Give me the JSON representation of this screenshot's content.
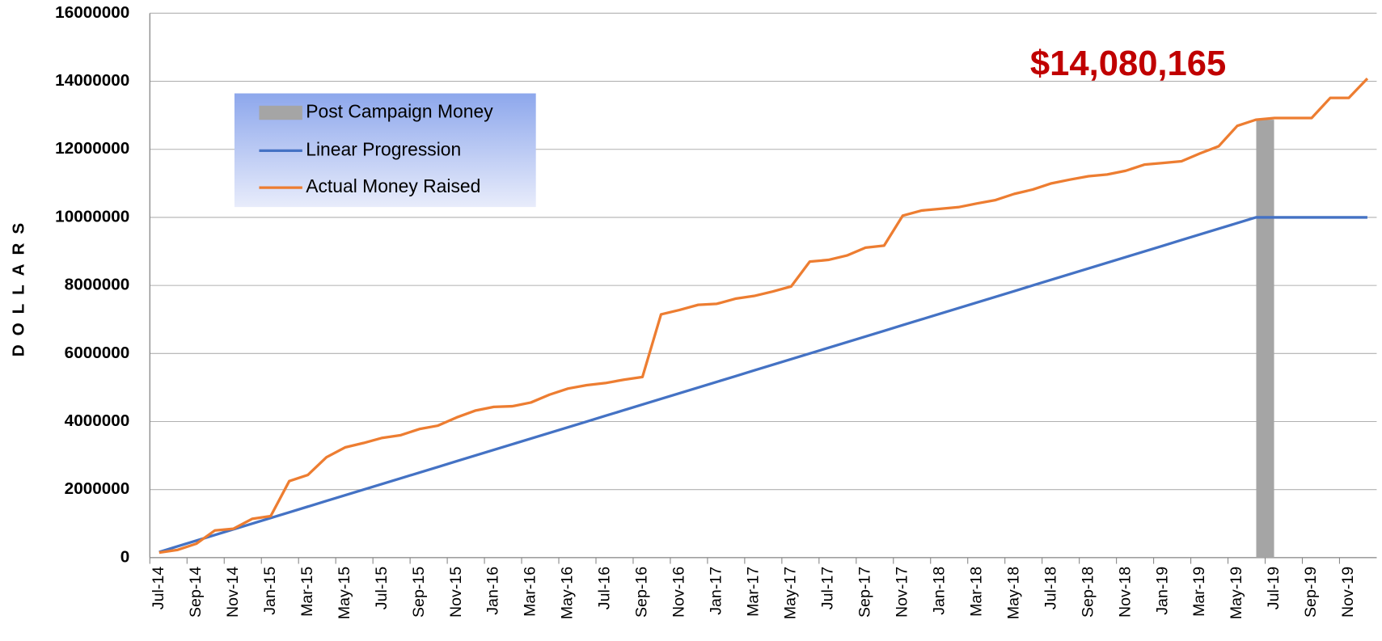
{
  "chart_data": {
    "type": "line",
    "annotation": "$14,080,165",
    "y_label": "DOLLARS",
    "categories": [
      "Jul-14",
      null,
      "Sep-14",
      null,
      "Nov-14",
      null,
      "Jan-15",
      null,
      "Mar-15",
      null,
      "May-15",
      null,
      "Jul-15",
      null,
      "Sep-15",
      null,
      "Nov-15",
      null,
      "Jan-16",
      null,
      "Mar-16",
      null,
      "May-16",
      null,
      "Jul-16",
      null,
      "Sep-16",
      null,
      "Nov-16",
      null,
      "Jan-17",
      null,
      "Mar-17",
      null,
      "May-17",
      null,
      "Jul-17",
      null,
      "Sep-17",
      null,
      "Nov-17",
      null,
      "Jan-18",
      null,
      "Mar-18",
      null,
      "May-18",
      null,
      "Jul-18",
      null,
      "Sep-18",
      null,
      "Nov-18",
      null,
      "Jan-19",
      null,
      "Mar-19",
      null,
      "May-19",
      null,
      "Jul-19",
      null,
      "Sep-19",
      null,
      "Nov-19",
      null
    ],
    "series": [
      {
        "name": "Post Campaign Money",
        "type": "bar",
        "color": "#a5a5a5",
        "values": [
          null,
          null,
          null,
          null,
          null,
          null,
          null,
          null,
          null,
          null,
          null,
          null,
          null,
          null,
          null,
          null,
          null,
          null,
          null,
          null,
          null,
          null,
          null,
          null,
          null,
          null,
          null,
          null,
          null,
          null,
          null,
          null,
          null,
          null,
          null,
          null,
          null,
          null,
          null,
          null,
          null,
          null,
          null,
          null,
          null,
          null,
          null,
          null,
          null,
          null,
          null,
          null,
          null,
          null,
          null,
          null,
          null,
          null,
          null,
          12870000,
          null,
          null,
          null,
          null,
          null,
          null
        ]
      },
      {
        "name": "Linear Progression",
        "type": "line",
        "color": "#4472c4",
        "values": [
          166667,
          333333,
          500000,
          666667,
          833333,
          1000000,
          1166667,
          1333333,
          1500000,
          1666667,
          1833333,
          2000000,
          2166667,
          2333333,
          2500000,
          2666667,
          2833333,
          3000000,
          3166667,
          3333333,
          3500000,
          3666667,
          3833333,
          4000000,
          4166667,
          4333333,
          4500000,
          4666667,
          4833333,
          5000000,
          5166667,
          5333333,
          5500000,
          5666667,
          5833333,
          6000000,
          6166667,
          6333333,
          6500000,
          6666667,
          6833333,
          7000000,
          7166667,
          7333333,
          7500000,
          7666667,
          7833333,
          8000000,
          8166667,
          8333333,
          8500000,
          8666667,
          8833333,
          9000000,
          9166667,
          9333333,
          9500000,
          9666667,
          9833333,
          10000000,
          10000000,
          10000000,
          10000000,
          10000000,
          10000000,
          10000000
        ]
      },
      {
        "name": "Actual Money Raised",
        "type": "line",
        "color": "#ed7d31",
        "values": [
          150000,
          230000,
          410000,
          800000,
          850000,
          1140000,
          1220000,
          2250000,
          2430000,
          2950000,
          3240000,
          3370000,
          3520000,
          3600000,
          3780000,
          3880000,
          4120000,
          4320000,
          4430000,
          4450000,
          4560000,
          4790000,
          4970000,
          5070000,
          5130000,
          5230000,
          5310000,
          7150000,
          7280000,
          7430000,
          7460000,
          7610000,
          7690000,
          7820000,
          7970000,
          8700000,
          8750000,
          8880000,
          9110000,
          9170000,
          10050000,
          10200000,
          10250000,
          10300000,
          10410000,
          10510000,
          10690000,
          10820000,
          11000000,
          11110000,
          11210000,
          11260000,
          11370000,
          11550000,
          11600000,
          11650000,
          11880000,
          12090000,
          12690000,
          12870000,
          12920000,
          12920000,
          12920000,
          13510000,
          13510000,
          14080165
        ]
      }
    ],
    "ylim": [
      0,
      16000000
    ],
    "yticks": [
      0,
      2000000,
      4000000,
      6000000,
      8000000,
      10000000,
      12000000,
      14000000,
      16000000
    ],
    "grid": true,
    "legend": "upper left"
  }
}
